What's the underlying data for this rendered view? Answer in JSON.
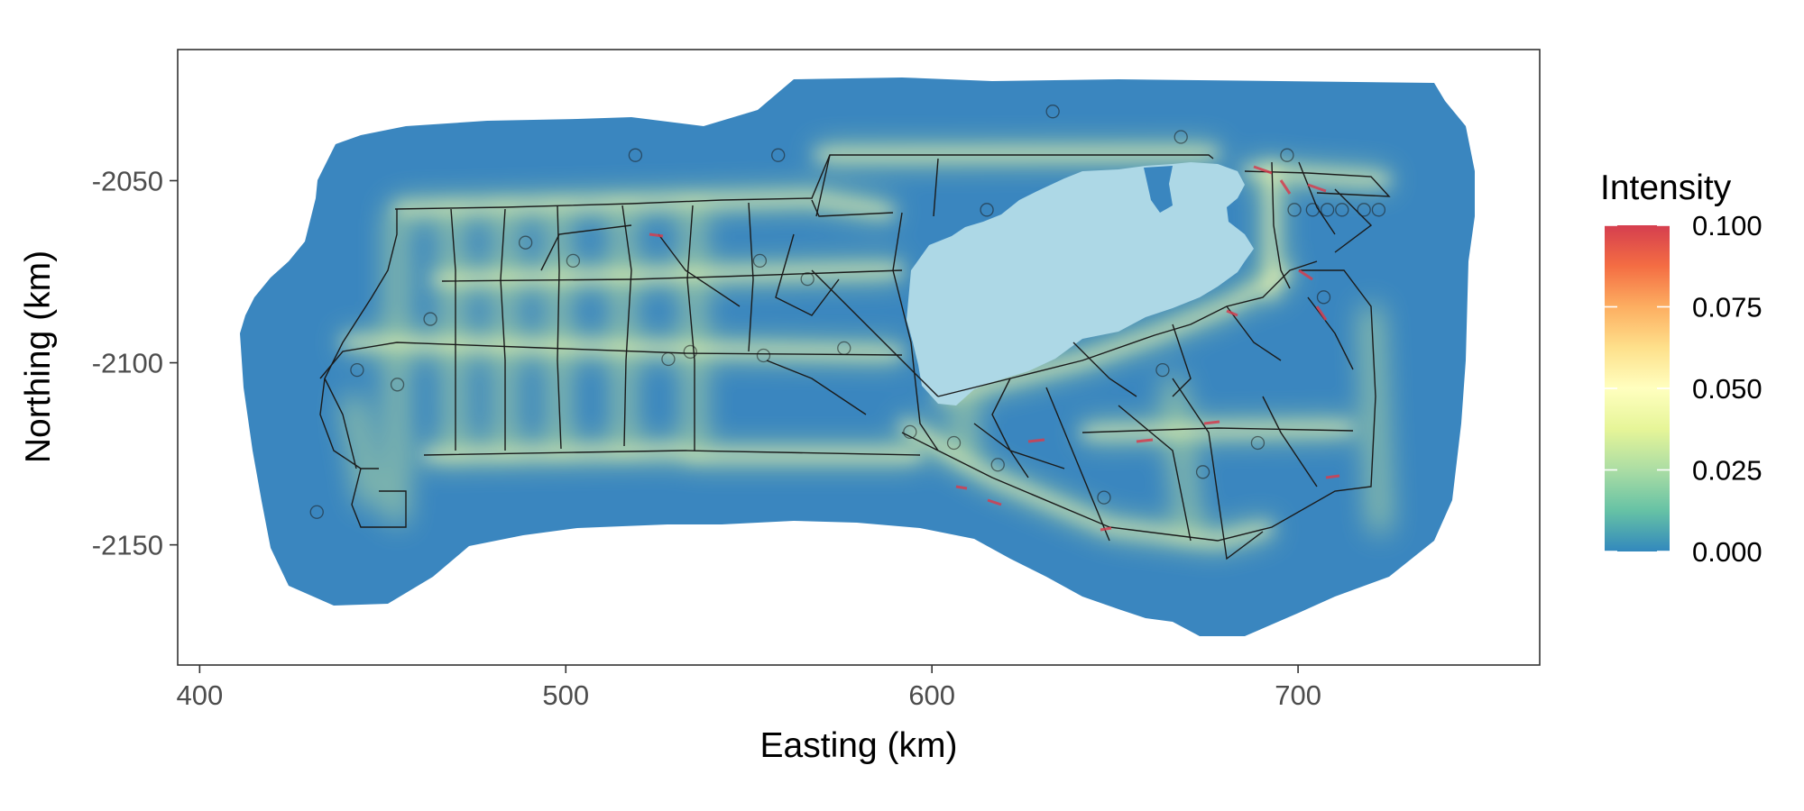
{
  "chart_data": {
    "type": "heatmap",
    "xlabel": "Easting (km)",
    "ylabel": "Northing (km)",
    "xlim": [
      394,
      766
    ],
    "ylim": [
      -2183,
      -2014
    ],
    "x_ticks": [
      400,
      500,
      600,
      700
    ],
    "x_tick_labels": [
      "400",
      "500",
      "600",
      "700"
    ],
    "y_ticks": [
      -2050,
      -2100,
      -2150
    ],
    "y_tick_labels": [
      "-2050",
      "-2100",
      "-2150"
    ],
    "grid": false,
    "legend": {
      "title": "Intensity",
      "placement": "right",
      "breaks": [
        0.1,
        0.075,
        0.05,
        0.025,
        0.0
      ],
      "labels": [
        "0.100",
        "0.075",
        "0.050",
        "0.025",
        "0.000"
      ],
      "range": [
        0,
        0.1
      ],
      "colors": [
        "#3288bd",
        "#66c2a5",
        "#abdda4",
        "#e6f598",
        "#ffffbf",
        "#fee08b",
        "#fdae61",
        "#f46d43",
        "#d53e4f"
      ]
    },
    "lake_color": "#add8e6",
    "road_color": "#000000",
    "points": [
      {
        "x": 443,
        "y": -2102
      },
      {
        "x": 463,
        "y": -2088
      },
      {
        "x": 489,
        "y": -2067
      },
      {
        "x": 502,
        "y": -2072
      },
      {
        "x": 519,
        "y": -2043
      },
      {
        "x": 534,
        "y": -2097
      },
      {
        "x": 528,
        "y": -2099
      },
      {
        "x": 553,
        "y": -2072
      },
      {
        "x": 554,
        "y": -2098
      },
      {
        "x": 566,
        "y": -2077
      },
      {
        "x": 558,
        "y": -2043
      },
      {
        "x": 576,
        "y": -2096
      },
      {
        "x": 594,
        "y": -2119
      },
      {
        "x": 606,
        "y": -2122
      },
      {
        "x": 618,
        "y": -2128
      },
      {
        "x": 633,
        "y": -2031
      },
      {
        "x": 647,
        "y": -2137
      },
      {
        "x": 663,
        "y": -2102
      },
      {
        "x": 674,
        "y": -2130
      },
      {
        "x": 697,
        "y": -2043
      },
      {
        "x": 699,
        "y": -2058
      },
      {
        "x": 704,
        "y": -2058
      },
      {
        "x": 708,
        "y": -2058
      },
      {
        "x": 712,
        "y": -2058
      },
      {
        "x": 718,
        "y": -2058
      },
      {
        "x": 722,
        "y": -2058
      },
      {
        "x": 707,
        "y": -2082
      },
      {
        "x": 689,
        "y": -2122
      },
      {
        "x": 432,
        "y": -2141
      },
      {
        "x": 454,
        "y": -2106
      },
      {
        "x": 615,
        "y": -2058
      },
      {
        "x": 668,
        "y": -2038
      }
    ]
  }
}
